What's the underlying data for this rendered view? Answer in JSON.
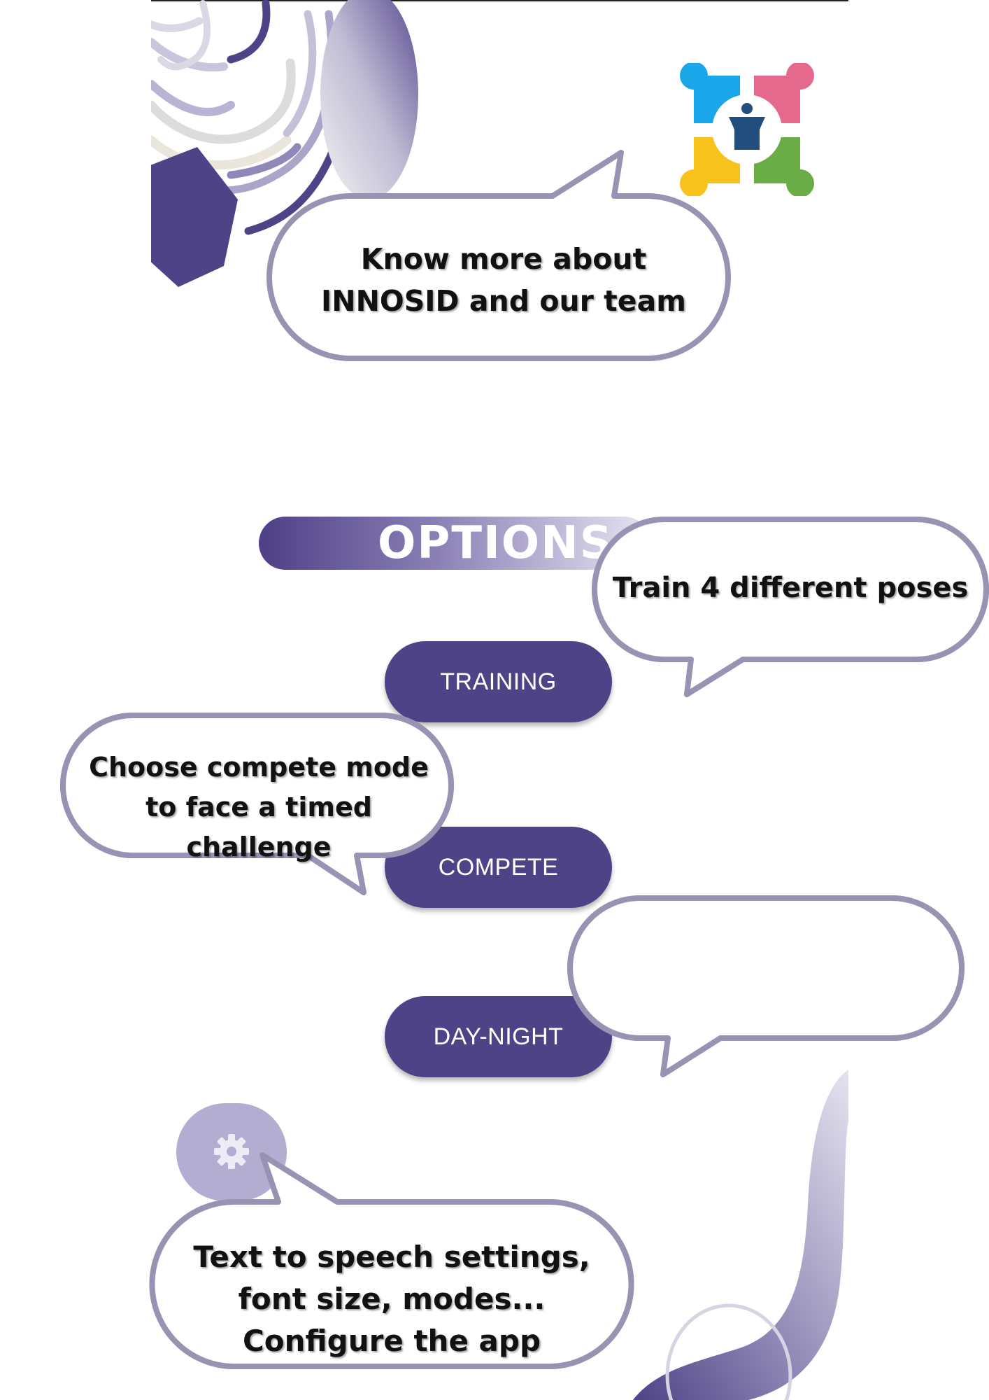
{
  "header": {
    "about_bubble": "Know more about INNOSID and our team",
    "logo": "innosid-logo"
  },
  "options": {
    "title": "OPTIONS",
    "buttons": {
      "training": "TRAINING",
      "compete": "COMPETE",
      "day_night": "DAY-NIGHT"
    }
  },
  "tooltips": {
    "training": "Train 4 different poses",
    "compete": "Choose compete mode to face a timed challenge",
    "day_night": "",
    "settings": "Text to speech settings, font size, modes... Configure the app"
  },
  "settings": {
    "icon": "gear-icon"
  },
  "colors": {
    "primary": "#4e4386",
    "bubble_border": "#9893b3",
    "settings_fab": "#b3add2",
    "logo_blue": "#1aa6e8",
    "logo_pink": "#e5698d",
    "logo_yellow": "#f7c21b",
    "logo_green": "#6aad46",
    "logo_center": "#224e7e"
  }
}
